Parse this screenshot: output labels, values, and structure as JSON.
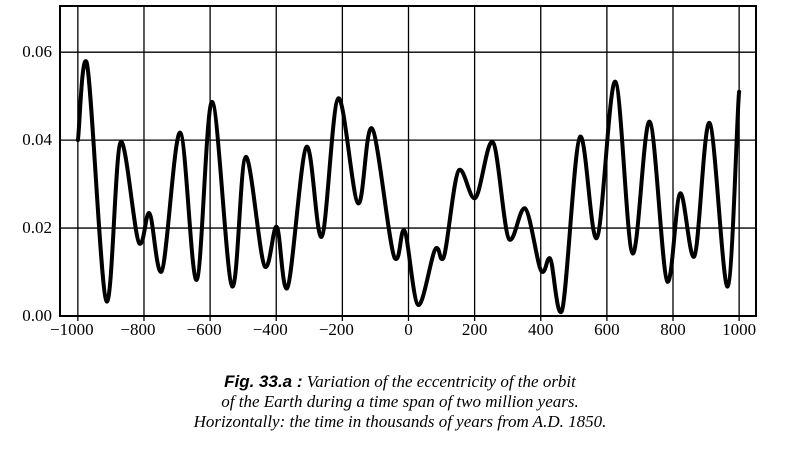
{
  "chart_data": {
    "type": "line",
    "title": "",
    "xlabel": "",
    "ylabel": "",
    "xlim": [
      -1054,
      1051
    ],
    "ylim": [
      0,
      0.0705
    ],
    "grid": true,
    "x_ticks": [
      -1000,
      -800,
      -600,
      -400,
      -200,
      0,
      200,
      400,
      600,
      800,
      1000
    ],
    "x_tick_labels": [
      "−1000",
      "−800",
      "−600",
      "−400",
      "−200",
      "0",
      "200",
      "400",
      "600",
      "800",
      "1000"
    ],
    "y_ticks": [
      0,
      0.02,
      0.04,
      0.06
    ],
    "y_tick_labels": [
      "0.00",
      "0.02",
      "0.04",
      "0.06"
    ],
    "series": [
      {
        "name": "Eccentricity",
        "x": [
          -1000,
          -974,
          -913,
          -870,
          -814,
          -784,
          -747,
          -691,
          -641,
          -594,
          -533,
          -492,
          -434,
          -399,
          -367,
          -308,
          -263,
          -212,
          -152,
          -111,
          -41,
          -13,
          30,
          83,
          105,
          153,
          201,
          254,
          305,
          352,
          403,
          428,
          463,
          519,
          569,
          625,
          678,
          729,
          783,
          822,
          864,
          910,
          965,
          1000
        ],
        "y": [
          0.04,
          0.0578,
          0.0033,
          0.0396,
          0.0165,
          0.0234,
          0.0101,
          0.0417,
          0.0082,
          0.0487,
          0.0067,
          0.0362,
          0.0112,
          0.0203,
          0.0063,
          0.0385,
          0.018,
          0.0495,
          0.0256,
          0.0427,
          0.0131,
          0.0195,
          0.0025,
          0.0154,
          0.0131,
          0.0332,
          0.0268,
          0.0396,
          0.0174,
          0.0245,
          0.0101,
          0.0131,
          0.001,
          0.0408,
          0.0177,
          0.0533,
          0.0142,
          0.0442,
          0.0078,
          0.0279,
          0.0135,
          0.0439,
          0.0067,
          0.051
        ]
      }
    ]
  },
  "caption": {
    "label": "Fig. 33.a :",
    "line1": " Variation of the eccentricity of the orbit",
    "line2": "of the Earth during a time span of two million years.",
    "line3": "Horizontally: the time in thousands of years from A.D. 1850."
  }
}
